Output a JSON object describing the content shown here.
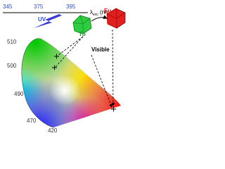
{
  "excitation_axis": {
    "ticks": [
      "345",
      "375",
      "395"
    ],
    "label": "λ",
    "label_sub": "exc",
    "unit": " (nm)"
  },
  "uv_label": "UV",
  "nodes": [
    {
      "label": "Tb"
    },
    {
      "label": "Eu"
    }
  ],
  "emission_label": "Visible",
  "cie_diagram": {
    "wavelength_labels": [
      "510",
      "500",
      "490",
      "470",
      "420"
    ]
  }
}
